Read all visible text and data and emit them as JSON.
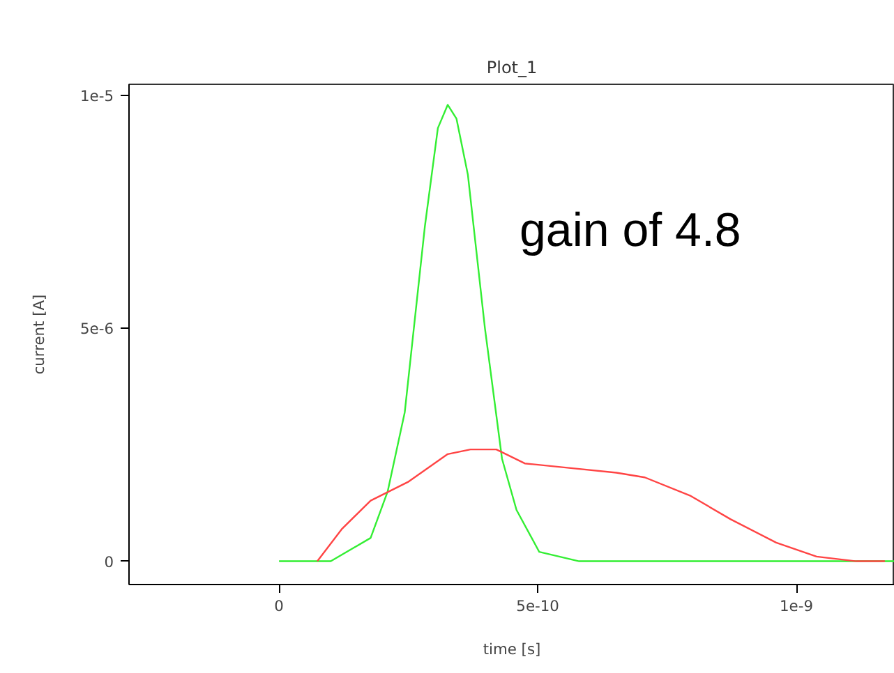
{
  "chart_data": {
    "type": "line",
    "title": "Plot_1",
    "xlabel": "time [s]",
    "ylabel": "current [A]",
    "annotations": [
      "gain of 4.8"
    ],
    "xlim": [
      -2.9e-10,
      1.19e-09
    ],
    "ylim": [
      -5e-07,
      1.024e-05
    ],
    "xticks": [
      {
        "value": 0,
        "label": "0"
      },
      {
        "value": 5e-10,
        "label": "5e-10"
      },
      {
        "value": 1e-09,
        "label": "1e-9"
      }
    ],
    "yticks": [
      {
        "value": 0,
        "label": "0"
      },
      {
        "value": 5e-06,
        "label": "5e-6"
      },
      {
        "value": 1e-05,
        "label": "1e-5"
      }
    ],
    "grid": false,
    "marker": "none",
    "line_style": "solid",
    "series": [
      {
        "color": "#33ee33",
        "x": [
          0,
          1e-10,
          1.77e-10,
          2.1e-10,
          2.43e-10,
          2.82e-10,
          3.07e-10,
          3.26e-10,
          3.43e-10,
          3.65e-10,
          3.98e-10,
          4.31e-10,
          4.59e-10,
          5.03e-10,
          5.8e-10,
          1.19e-09
        ],
        "values": [
          0,
          0,
          5e-07,
          1.5e-06,
          3.2e-06,
          7.2e-06,
          9.3e-06,
          9.8e-06,
          9.5e-06,
          8.3e-06,
          5e-06,
          2.2e-06,
          1.1e-06,
          2e-07,
          0,
          0
        ]
      },
      {
        "color": "#ff4444",
        "x": [
          7.4e-11,
          1.22e-10,
          1.77e-10,
          2.49e-10,
          3.26e-10,
          3.7e-10,
          4.2e-10,
          4.75e-10,
          5.64e-10,
          6.52e-10,
          7.07e-10,
          7.96e-10,
          8.73e-10,
          9.61e-10,
          1.039e-09,
          1.116e-09,
          1.171e-09
        ],
        "values": [
          0,
          7e-07,
          1.3e-06,
          1.7e-06,
          2.3e-06,
          2.4e-06,
          2.4e-06,
          2.1e-06,
          2e-06,
          1.9e-06,
          1.8e-06,
          1.4e-06,
          9e-07,
          4e-07,
          1e-07,
          0,
          0
        ]
      }
    ]
  }
}
